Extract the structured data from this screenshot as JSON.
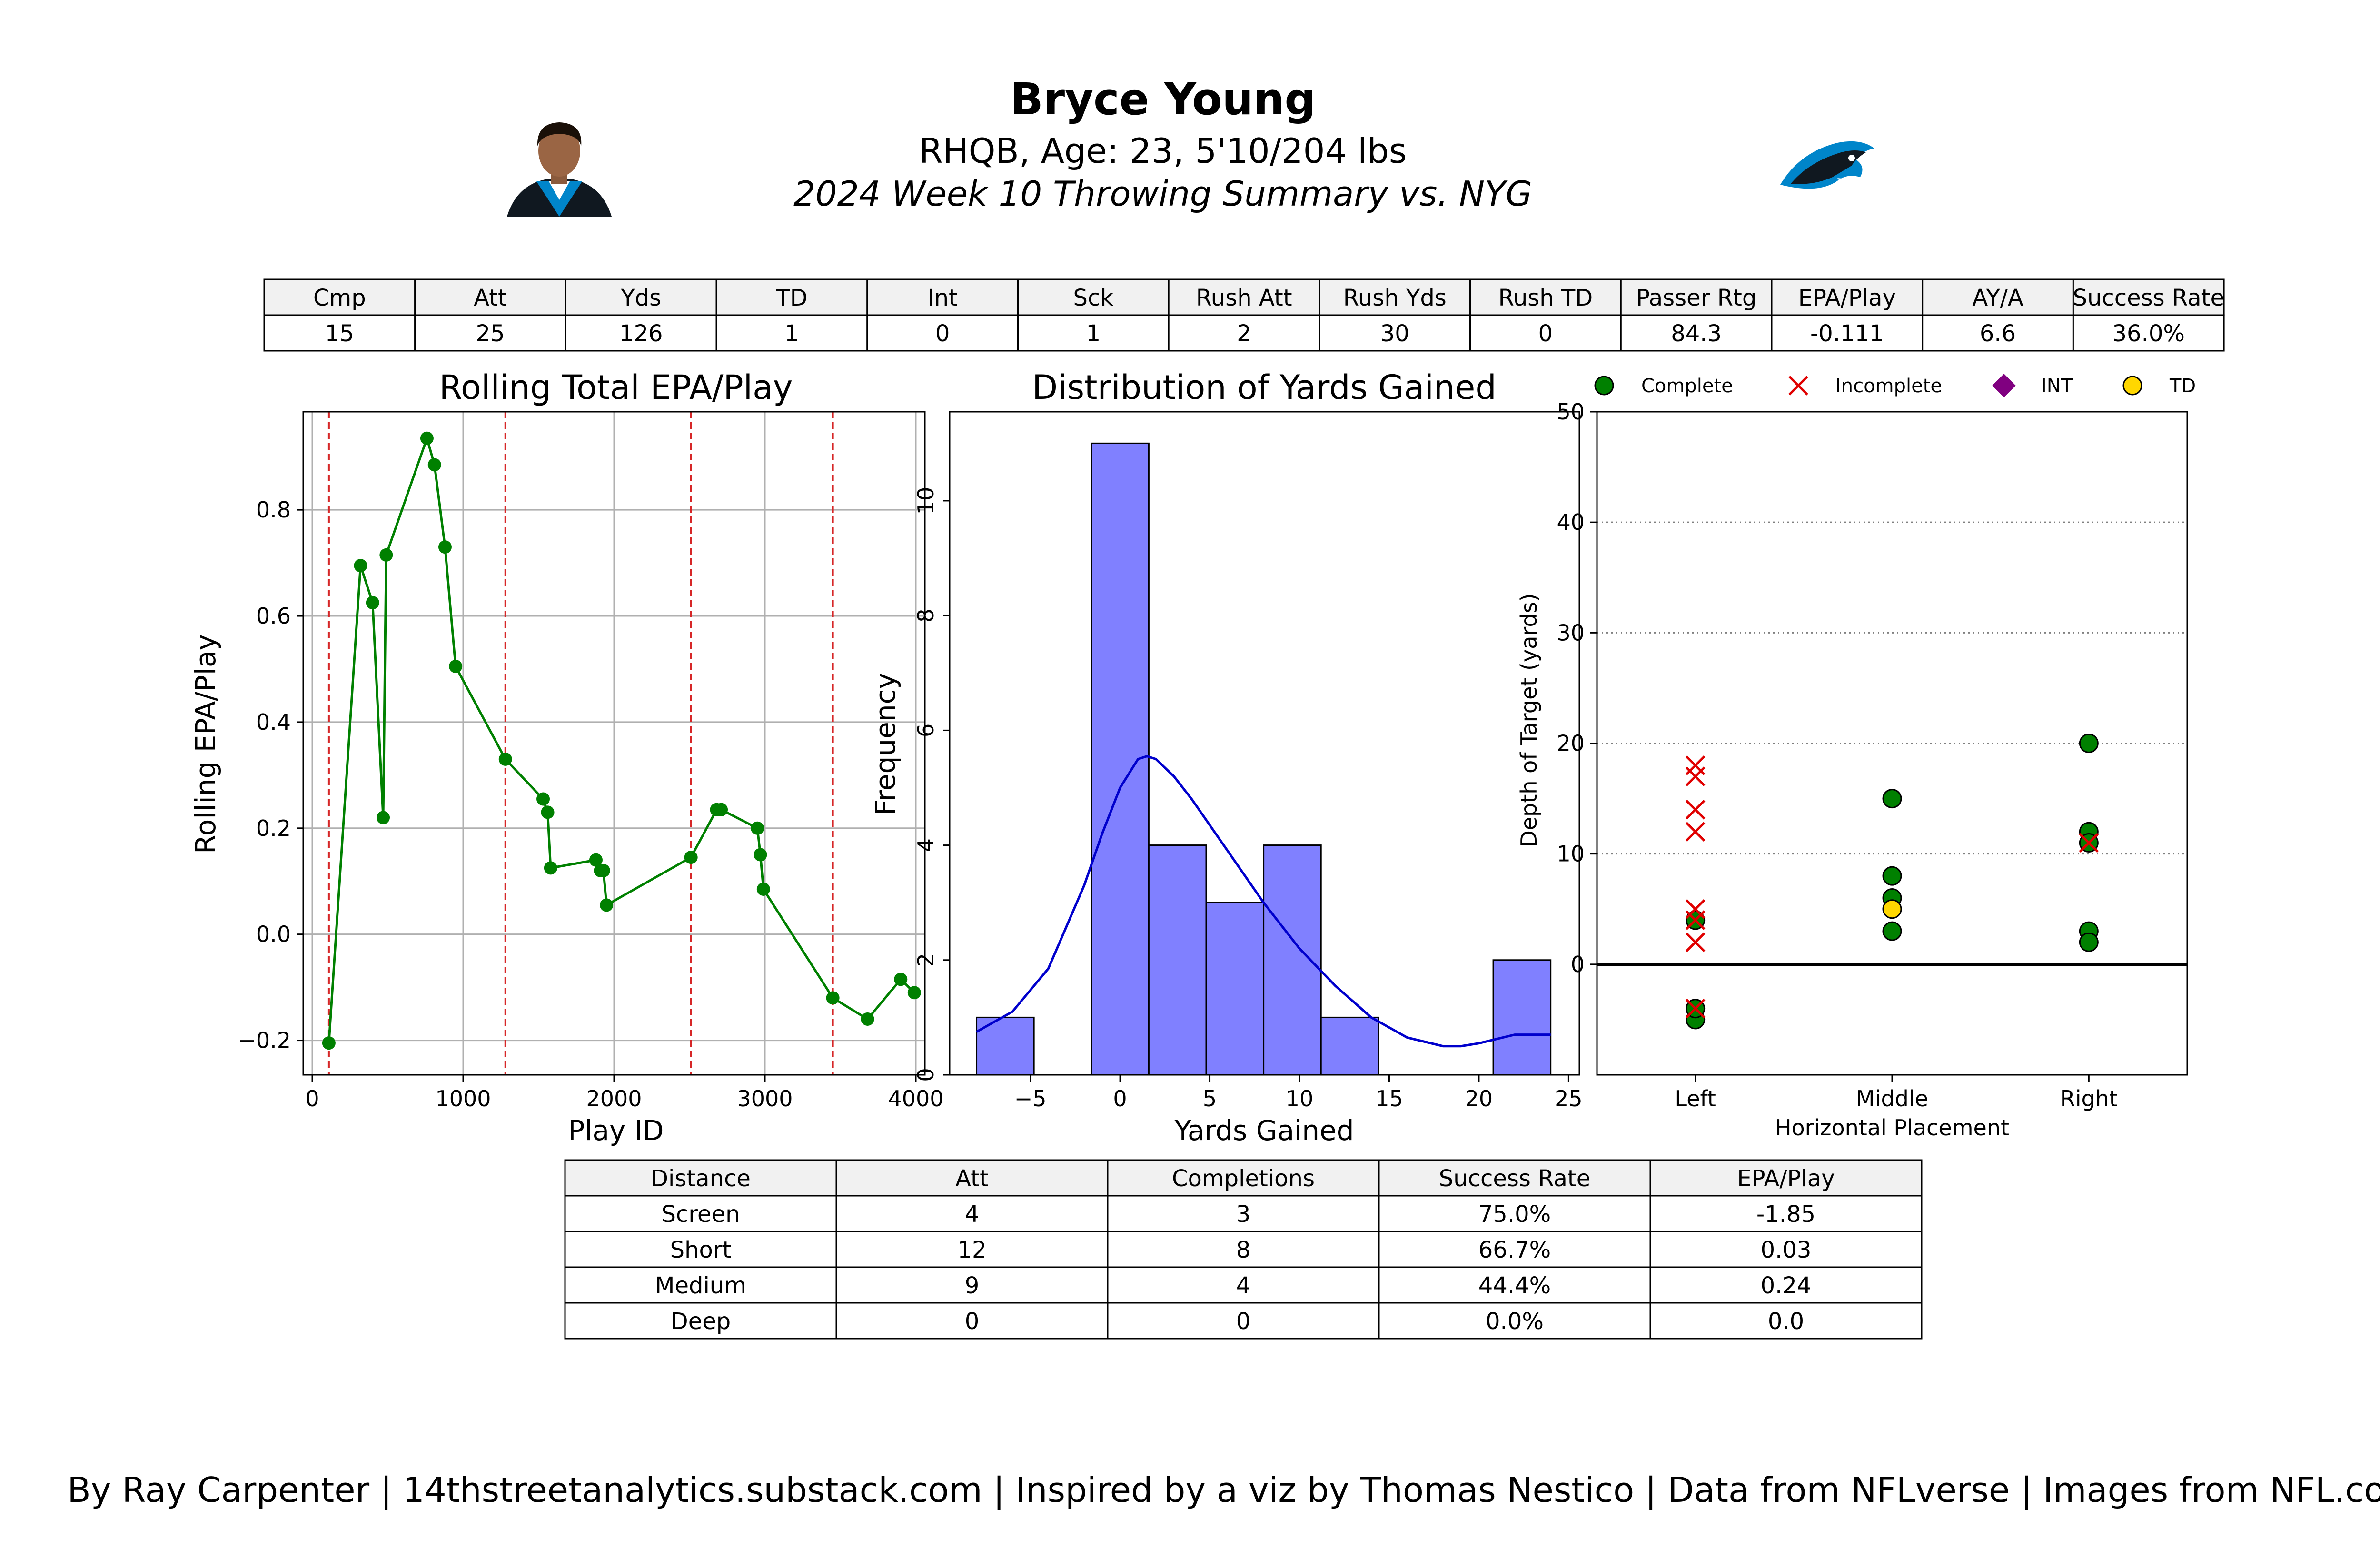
{
  "header": {
    "name": "Bryce Young",
    "bio": "RHQB, Age: 23, 5'10/204 lbs",
    "subtitle": "2024 Week 10 Throwing Summary vs. NYG",
    "headshot_icon": "player-headshot-icon",
    "logo_icon": "panthers-logo-icon",
    "brand_color": "#0085CA"
  },
  "summary_table": {
    "headers": [
      "Cmp",
      "Att",
      "Yds",
      "TD",
      "Int",
      "Sck",
      "Rush Att",
      "Rush Yds",
      "Rush TD",
      "Passer Rtg",
      "EPA/Play",
      "AY/A",
      "Success Rate"
    ],
    "values": [
      "15",
      "25",
      "126",
      "1",
      "0",
      "1",
      "2",
      "30",
      "0",
      "84.3",
      "-0.111",
      "6.6",
      "36.0%"
    ]
  },
  "distance_table": {
    "headers": [
      "Distance",
      "Att",
      "Completions",
      "Success Rate",
      "EPA/Play"
    ],
    "rows": [
      [
        "Screen",
        "4",
        "3",
        "75.0%",
        "-1.85"
      ],
      [
        "Short",
        "12",
        "8",
        "66.7%",
        "0.03"
      ],
      [
        "Medium",
        "9",
        "4",
        "44.4%",
        "0.24"
      ],
      [
        "Deep",
        "0",
        "0",
        "0.0%",
        "0.0"
      ]
    ]
  },
  "footer": "By Ray Carpenter | 14thstreetanalytics.substack.com | Inspired by a viz by Thomas Nestico | Data from NFLverse | Images from NFL.com",
  "chart_data": [
    {
      "type": "line",
      "title": "Rolling Total EPA/Play",
      "xlabel": "Play ID",
      "ylabel": "Rolling EPA/Play",
      "xlim": [
        -60,
        4060
      ],
      "ylim": [
        -0.265,
        0.985
      ],
      "xticks": [
        0,
        1000,
        2000,
        3000,
        4000
      ],
      "xtick_labels": [
        "0",
        "1000",
        "2000",
        "3000",
        "4000"
      ],
      "yticks": [
        -0.2,
        0.0,
        0.2,
        0.4,
        0.6,
        0.8
      ],
      "ytick_labels": [
        "−0.2",
        "0.0",
        "0.2",
        "0.4",
        "0.6",
        "0.8"
      ],
      "grid": true,
      "color": "#008000",
      "vlines": [
        110,
        1280,
        2510,
        3450
      ],
      "vline_color": "#d62728",
      "x": [
        110,
        320,
        400,
        470,
        490,
        760,
        810,
        880,
        950,
        1280,
        1530,
        1560,
        1580,
        1880,
        1910,
        1930,
        1950,
        2510,
        2680,
        2710,
        2950,
        2970,
        2990,
        3450,
        3680,
        3900,
        3990
      ],
      "y": [
        -0.205,
        0.695,
        0.625,
        0.22,
        0.715,
        0.935,
        0.885,
        0.73,
        0.505,
        0.33,
        0.255,
        0.23,
        0.125,
        0.14,
        0.12,
        0.12,
        0.055,
        0.145,
        0.235,
        0.235,
        0.2,
        0.15,
        0.085,
        -0.12,
        -0.16,
        -0.085,
        -0.11
      ]
    },
    {
      "type": "bar",
      "title": "Distribution of Yards Gained",
      "xlabel": "Yards Gained",
      "ylabel": "Frequency",
      "xlim": [
        -9.5,
        25.6
      ],
      "ylim": [
        0,
        11.55
      ],
      "xticks": [
        -5,
        0,
        5,
        10,
        15,
        20,
        25
      ],
      "xtick_labels": [
        "−5",
        "0",
        "5",
        "10",
        "15",
        "20",
        "25"
      ],
      "yticks": [
        0,
        2,
        4,
        6,
        8,
        10
      ],
      "ytick_labels": [
        "0",
        "2",
        "4",
        "6",
        "8",
        "10"
      ],
      "bin_edges": [
        -8,
        -4.8,
        -1.6,
        1.6,
        4.8,
        8,
        11.2,
        14.4,
        17.6,
        20.8,
        24
      ],
      "values": [
        1,
        0,
        11,
        4,
        3,
        4,
        1,
        0,
        0,
        2
      ],
      "bar_color": "#8080ff",
      "kde_color": "#0000cc",
      "kde_x": [
        -8,
        -6,
        -4,
        -2,
        -1,
        0,
        1,
        1.5,
        2,
        3,
        4,
        5,
        6,
        7,
        8,
        10,
        12,
        14,
        16,
        18,
        19,
        20,
        22,
        24
      ],
      "kde_y": [
        0.75,
        1.1,
        1.85,
        3.3,
        4.2,
        5.0,
        5.5,
        5.55,
        5.5,
        5.2,
        4.8,
        4.35,
        3.9,
        3.45,
        3.0,
        2.2,
        1.55,
        1.0,
        0.65,
        0.5,
        0.5,
        0.55,
        0.7,
        0.7
      ]
    },
    {
      "type": "scatter",
      "title": "",
      "xlabel": "Horizontal Placement",
      "ylabel": "Depth of Target (yards)",
      "categories": [
        "Left",
        "Middle",
        "Right"
      ],
      "xlim": [
        -0.5,
        2.5
      ],
      "ylim": [
        -10,
        50
      ],
      "yticks": [
        0,
        10,
        20,
        30,
        40,
        50
      ],
      "ytick_labels": [
        "0",
        "10",
        "20",
        "30",
        "40",
        "50"
      ],
      "grid": "horizontal-dotted",
      "legend_placement": "top",
      "legend": [
        {
          "label": "Complete",
          "marker": "circle",
          "color": "#008000"
        },
        {
          "label": "Incomplete",
          "marker": "x",
          "color": "#e00000"
        },
        {
          "label": "INT",
          "marker": "diamond",
          "color": "#800080"
        },
        {
          "label": "TD",
          "marker": "circle",
          "color": "#ffd700"
        }
      ],
      "series": [
        {
          "name": "Complete",
          "points": [
            [
              0,
              4
            ],
            [
              0,
              -5
            ],
            [
              0,
              -4
            ],
            [
              1,
              15
            ],
            [
              1,
              8
            ],
            [
              1,
              6
            ],
            [
              1,
              3
            ],
            [
              2,
              20
            ],
            [
              2,
              12
            ],
            [
              2,
              11
            ],
            [
              2,
              3
            ],
            [
              2,
              2
            ]
          ]
        },
        {
          "name": "Incomplete",
          "points": [
            [
              0,
              18
            ],
            [
              0,
              17
            ],
            [
              0,
              14
            ],
            [
              0,
              12
            ],
            [
              0,
              5
            ],
            [
              0,
              4
            ],
            [
              0,
              2
            ],
            [
              0,
              -4
            ],
            [
              2,
              11
            ]
          ]
        },
        {
          "name": "INT",
          "points": []
        },
        {
          "name": "TD",
          "points": [
            [
              1,
              5
            ]
          ]
        }
      ]
    }
  ]
}
